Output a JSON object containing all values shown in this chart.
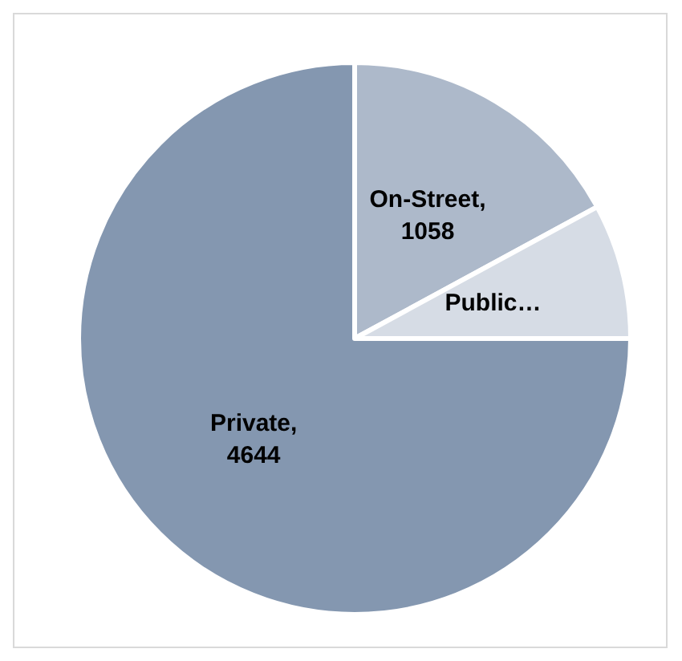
{
  "chart_data": {
    "type": "pie",
    "categories": [
      "On-Street",
      "Public…",
      "Private"
    ],
    "values": [
      1058,
      490,
      4644
    ],
    "value_labels": [
      ", 1058",
      null,
      ", 4644"
    ],
    "colors": [
      "#adb9ca",
      "#d6dce5",
      "#8497b0"
    ],
    "legend": false
  }
}
